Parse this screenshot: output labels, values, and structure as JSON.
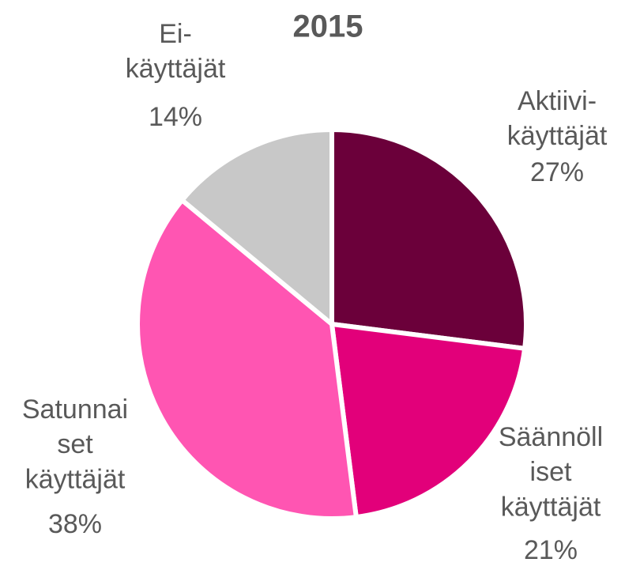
{
  "chart_data": {
    "type": "pie",
    "title": "2015",
    "categories": [
      "Aktiivi-\nkäyttäjät",
      "Säännöll\niset\nkäyttäjät",
      "Satunnai\nset\nkäyttäjät",
      "Ei-\nkäyttäjät"
    ],
    "values": [
      27,
      21,
      38,
      14
    ],
    "value_labels": [
      "27%",
      "21%",
      "38%",
      "14%"
    ],
    "colors": [
      "#6b003a",
      "#e2007a",
      "#ff55b2",
      "#c8c8c8"
    ]
  }
}
